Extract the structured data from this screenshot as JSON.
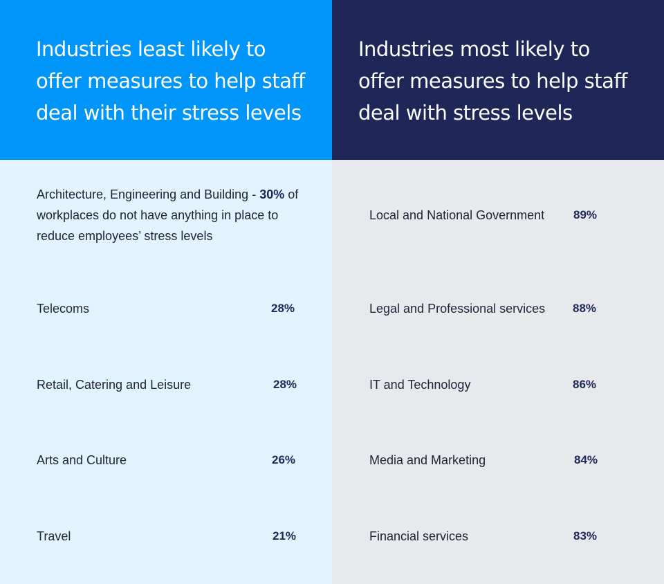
{
  "left": {
    "heading": "Industries least likely to offer measures to help staff deal with their stress levels",
    "first": {
      "label": "Architecture, Engineering and Building - ",
      "value": "30%",
      "suffix": " of workplaces do not have anything in place to reduce employees’ stress levels"
    },
    "rows": [
      {
        "label": "Telecoms",
        "value": "28%"
      },
      {
        "label": "Retail, Catering and Leisure",
        "value": "28%"
      },
      {
        "label": "Arts and Culture",
        "value": "26%"
      },
      {
        "label": "Travel",
        "value": "21%"
      }
    ]
  },
  "right": {
    "heading": "Industries most likely to offer measures to help staff deal with stress levels",
    "rows": [
      {
        "label": "Local and National Government",
        "value": "89%"
      },
      {
        "label": "Legal and Professional services",
        "value": "88%"
      },
      {
        "label": "IT and Technology",
        "value": "86%"
      },
      {
        "label": "Media and Marketing",
        "value": "84%"
      },
      {
        "label": "Financial services",
        "value": "83%"
      }
    ]
  },
  "colors": {
    "left_header": "#0096f9",
    "right_header": "#1e2757",
    "left_body": "#e1f3fd",
    "right_body": "#e8e9ed"
  }
}
